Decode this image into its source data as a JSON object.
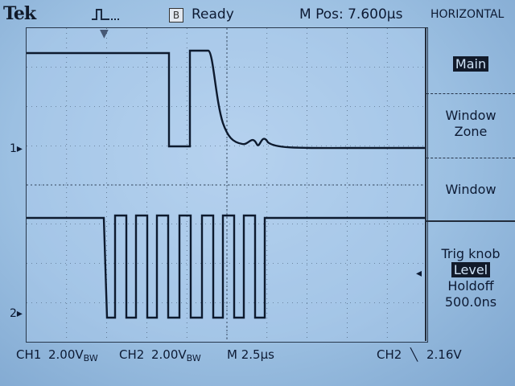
{
  "header": {
    "brand": "Tek",
    "status": "Ready",
    "mpos": "M Pos: 7.600µs",
    "menu_title": "HORIZONTAL",
    "trigger_icon": "trigger-pulse-icon",
    "state_icon": "B"
  },
  "menu": {
    "main": "Main",
    "window_zone_1": "Window",
    "window_zone_2": "Zone",
    "window": "Window",
    "trig_knob": "Trig knob",
    "level": "Level",
    "holdoff": "Holdoff",
    "holdoff_value": "500.0ns"
  },
  "markers": {
    "ch1": "1▸",
    "ch2": "2▸"
  },
  "bottom": {
    "ch1_label": "CH1",
    "ch1_value": "2.00V",
    "ch2_label": "CH2",
    "ch2_value": "2.00V",
    "bw": "BW",
    "timebase": "M 2.5µs",
    "trig_ch": "CH2",
    "trig_slope": "╲",
    "trig_level": "2.16V"
  },
  "colors": {
    "trace": "#0d1a2e",
    "screen": "#a9c9ea",
    "grid": "#33465c"
  }
}
